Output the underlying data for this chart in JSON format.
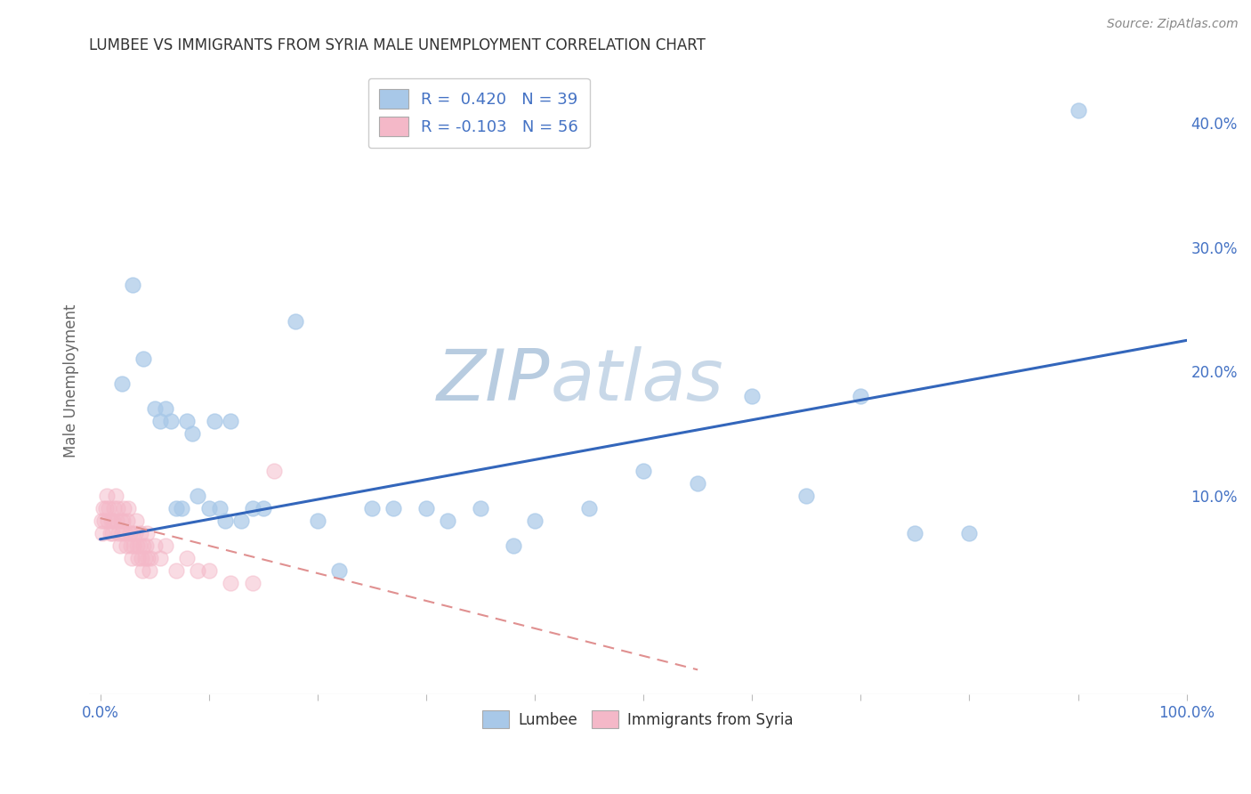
{
  "title": "LUMBEE VS IMMIGRANTS FROM SYRIA MALE UNEMPLOYMENT CORRELATION CHART",
  "source": "Source: ZipAtlas.com",
  "ylabel": "Male Unemployment",
  "watermark_zip": "ZIP",
  "watermark_atlas": "atlas",
  "blue_R": 0.42,
  "blue_N": 39,
  "pink_R": -0.103,
  "pink_N": 56,
  "blue_color": "#a8c8e8",
  "pink_color": "#f4b8c8",
  "blue_line_color": "#3366bb",
  "pink_line_color": "#e09090",
  "xlim": [
    -0.01,
    1.0
  ],
  "ylim": [
    -0.06,
    0.445
  ],
  "blue_scatter_x": [
    0.02,
    0.03,
    0.04,
    0.05,
    0.055,
    0.06,
    0.065,
    0.07,
    0.075,
    0.08,
    0.085,
    0.09,
    0.1,
    0.105,
    0.11,
    0.115,
    0.12,
    0.13,
    0.14,
    0.15,
    0.18,
    0.2,
    0.22,
    0.25,
    0.27,
    0.3,
    0.32,
    0.35,
    0.38,
    0.4,
    0.45,
    0.5,
    0.55,
    0.6,
    0.65,
    0.7,
    0.75,
    0.8,
    0.9
  ],
  "blue_scatter_y": [
    0.19,
    0.27,
    0.21,
    0.17,
    0.16,
    0.17,
    0.16,
    0.09,
    0.09,
    0.16,
    0.15,
    0.1,
    0.09,
    0.16,
    0.09,
    0.08,
    0.16,
    0.08,
    0.09,
    0.09,
    0.24,
    0.08,
    0.04,
    0.09,
    0.09,
    0.09,
    0.08,
    0.09,
    0.06,
    0.08,
    0.09,
    0.12,
    0.11,
    0.18,
    0.1,
    0.18,
    0.07,
    0.07,
    0.41
  ],
  "pink_scatter_x": [
    0.001,
    0.002,
    0.003,
    0.004,
    0.005,
    0.006,
    0.007,
    0.008,
    0.009,
    0.01,
    0.011,
    0.012,
    0.013,
    0.014,
    0.015,
    0.016,
    0.017,
    0.018,
    0.019,
    0.02,
    0.021,
    0.022,
    0.023,
    0.024,
    0.025,
    0.026,
    0.027,
    0.028,
    0.029,
    0.03,
    0.031,
    0.032,
    0.033,
    0.034,
    0.035,
    0.036,
    0.037,
    0.038,
    0.039,
    0.04,
    0.041,
    0.042,
    0.043,
    0.044,
    0.045,
    0.046,
    0.05,
    0.055,
    0.06,
    0.07,
    0.08,
    0.09,
    0.1,
    0.12,
    0.14,
    0.16
  ],
  "pink_scatter_y": [
    0.08,
    0.07,
    0.09,
    0.08,
    0.09,
    0.1,
    0.08,
    0.09,
    0.07,
    0.08,
    0.07,
    0.08,
    0.09,
    0.1,
    0.08,
    0.09,
    0.07,
    0.06,
    0.08,
    0.07,
    0.08,
    0.09,
    0.07,
    0.06,
    0.08,
    0.09,
    0.07,
    0.06,
    0.05,
    0.07,
    0.06,
    0.07,
    0.08,
    0.06,
    0.05,
    0.06,
    0.07,
    0.05,
    0.04,
    0.06,
    0.05,
    0.06,
    0.07,
    0.05,
    0.04,
    0.05,
    0.06,
    0.05,
    0.06,
    0.04,
    0.05,
    0.04,
    0.04,
    0.03,
    0.03,
    0.12
  ],
  "ytick_right_vals": [
    0.1,
    0.2,
    0.3,
    0.4
  ],
  "ytick_right_labels": [
    "10.0%",
    "20.0%",
    "30.0%",
    "40.0%"
  ],
  "grid_color": "#cccccc",
  "bg_color": "#ffffff",
  "watermark_color": "#ccd8e8",
  "legend_label_blue": "R =  0.420   N = 39",
  "legend_label_pink": "R = -0.103   N = 56",
  "bottom_legend_blue": "Lumbee",
  "bottom_legend_pink": "Immigrants from Syria",
  "blue_trend_x0": 0.0,
  "blue_trend_y0": 0.065,
  "blue_trend_x1": 1.0,
  "blue_trend_y1": 0.225,
  "pink_trend_x0": 0.0,
  "pink_trend_y0": 0.082,
  "pink_trend_x1": 0.55,
  "pink_trend_y1": -0.04
}
